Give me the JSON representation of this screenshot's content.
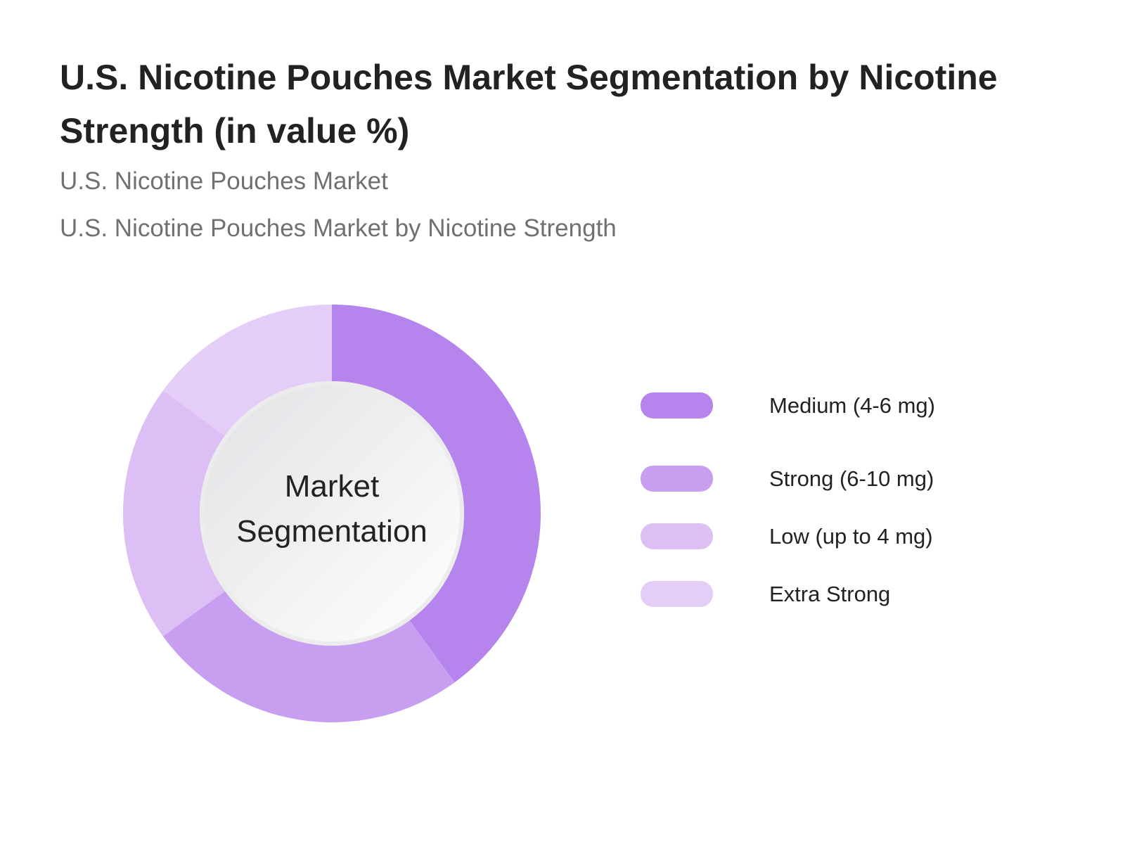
{
  "title": "U.S. Nicotine Pouches Market Segmentation by Nicotine Strength (in value %)",
  "subtitles": [
    "U.S. Nicotine Pouches Market",
    "U.S. Nicotine Pouches Market by Nicotine Strength"
  ],
  "chart_data": {
    "type": "pie",
    "variant": "donut",
    "title": "U.S. Nicotine Pouches Market Segmentation by Nicotine Strength (in value %)",
    "center_label": [
      "Market",
      "Segmentation"
    ],
    "categories": [
      "Medium (4-6 mg)",
      "Strong (6-10 mg)",
      "Low (up to 4 mg)",
      "Extra Strong"
    ],
    "values": [
      40,
      25,
      20,
      15
    ],
    "colors": [
      "#b584ec",
      "#c89ff0",
      "#dcc0f5",
      "#e4cdf7"
    ],
    "legend_position": "right"
  }
}
